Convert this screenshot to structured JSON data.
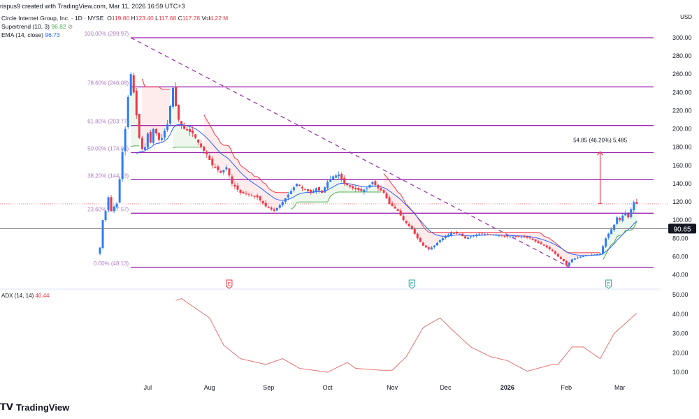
{
  "header": {
    "credit": "rispus9 created with TradingView.com, Mar 11, 2026 16:59 UTC+3",
    "symbol": "Circle Internet Group, Inc. · 1D · NYSE",
    "o_label": "O",
    "o": "119.80",
    "h_label": "H",
    "h": "123.40",
    "l_label": "L",
    "l": "117.68",
    "c_label": "C",
    "c": "117.78",
    "vol_label": "Vol",
    "vol": "4.22 M",
    "supertrend_label": "Supertrend (10, 3)",
    "supertrend_value": "96.82",
    "ema_label": "EMA (14, close)",
    "ema_value": "96.73",
    "currency": "USD"
  },
  "adx": {
    "label": "ADX (14, 14)",
    "value": "40.44"
  },
  "brand": {
    "name": "TradingView"
  },
  "colors": {
    "up": "#2e7cf6",
    "down": "#f23645",
    "fib": "#9c27b0",
    "ema": "#2962ff",
    "supertrend_up": "#4caf50",
    "supertrend_down": "#f23645",
    "adx": "#e57373"
  },
  "chart_data": {
    "type": "candlestick",
    "title": "Circle Internet Group, Inc. 1D NYSE",
    "price_axis": {
      "ticks": [
        "300.00",
        "280.00",
        "260.00",
        "240.00",
        "220.00",
        "200.00",
        "180.00",
        "160.00",
        "140.00",
        "120.00",
        "100.00",
        "80.00",
        "60.00",
        "40.00"
      ],
      "range": [
        36,
        310
      ]
    },
    "time_axis": {
      "ticks": [
        {
          "label": "Jul",
          "day": 17
        },
        {
          "label": "Aug",
          "day": 39
        },
        {
          "label": "Sep",
          "day": 60
        },
        {
          "label": "Oct",
          "day": 81
        },
        {
          "label": "Nov",
          "day": 104
        },
        {
          "label": "Dec",
          "day": 123
        },
        {
          "label": "2026",
          "day": 145,
          "bold": true
        },
        {
          "label": "Feb",
          "day": 166
        },
        {
          "label": "Mar",
          "day": 185
        }
      ]
    },
    "close_keypoints": [
      [
        0,
        70
      ],
      [
        1,
        100
      ],
      [
        2,
        110
      ],
      [
        3,
        125
      ],
      [
        4,
        110
      ],
      [
        5,
        115
      ],
      [
        6,
        118
      ],
      [
        7,
        145
      ],
      [
        8,
        175
      ],
      [
        9,
        200
      ],
      [
        10,
        235
      ],
      [
        11,
        260
      ],
      [
        12,
        240
      ],
      [
        13,
        215
      ],
      [
        14,
        190
      ],
      [
        15,
        178
      ],
      [
        16,
        180
      ],
      [
        17,
        195
      ],
      [
        18,
        185
      ],
      [
        19,
        200
      ],
      [
        20,
        195
      ],
      [
        21,
        188
      ],
      [
        22,
        190
      ],
      [
        23,
        198
      ],
      [
        24,
        205
      ],
      [
        25,
        225
      ],
      [
        26,
        245
      ],
      [
        27,
        225
      ],
      [
        28,
        210
      ],
      [
        30,
        200
      ],
      [
        33,
        195
      ],
      [
        36,
        180
      ],
      [
        38,
        172
      ],
      [
        40,
        160
      ],
      [
        43,
        152
      ],
      [
        45,
        158
      ],
      [
        47,
        140
      ],
      [
        50,
        130
      ],
      [
        53,
        128
      ],
      [
        56,
        125
      ],
      [
        59,
        115
      ],
      [
        62,
        110
      ],
      [
        65,
        120
      ],
      [
        68,
        132
      ],
      [
        70,
        140
      ],
      [
        72,
        135
      ],
      [
        75,
        130
      ],
      [
        77,
        135
      ],
      [
        79,
        130
      ],
      [
        81,
        142
      ],
      [
        83,
        148
      ],
      [
        85,
        150
      ],
      [
        87,
        140
      ],
      [
        90,
        135
      ],
      [
        93,
        132
      ],
      [
        95,
        135
      ],
      [
        97,
        142
      ],
      [
        99,
        135
      ],
      [
        101,
        130
      ],
      [
        103,
        118
      ],
      [
        106,
        110
      ],
      [
        108,
        100
      ],
      [
        111,
        90
      ],
      [
        113,
        80
      ],
      [
        115,
        72
      ],
      [
        117,
        68
      ],
      [
        119,
        72
      ],
      [
        121,
        78
      ],
      [
        123,
        82
      ],
      [
        125,
        86
      ],
      [
        128,
        85
      ],
      [
        130,
        80
      ],
      [
        132,
        82
      ],
      [
        135,
        85
      ],
      [
        140,
        84
      ],
      [
        145,
        82
      ],
      [
        150,
        82
      ],
      [
        153,
        80
      ],
      [
        156,
        75
      ],
      [
        158,
        72
      ],
      [
        161,
        66
      ],
      [
        163,
        60
      ],
      [
        165,
        55
      ],
      [
        166,
        50
      ],
      [
        168,
        57
      ],
      [
        171,
        60
      ],
      [
        175,
        62
      ],
      [
        178,
        63
      ],
      [
        180,
        80
      ],
      [
        181,
        85
      ],
      [
        183,
        95
      ],
      [
        184,
        103
      ],
      [
        185,
        100
      ],
      [
        186,
        105
      ],
      [
        187,
        108
      ],
      [
        188,
        103
      ],
      [
        189,
        112
      ],
      [
        190,
        119.8
      ],
      [
        191,
        117.78
      ]
    ],
    "fibonacci": {
      "levels": [
        {
          "label": "100.00% (299.97)",
          "price": 299.97
        },
        {
          "label": "78.60% (246.08)",
          "price": 246.08
        },
        {
          "label": "61.80% (203.77)",
          "price": 203.77
        },
        {
          "label": "50.00% (174.05)",
          "price": 174.05
        },
        {
          "label": "38.20% (144.33)",
          "price": 144.33
        },
        {
          "label": "23.60% (107.57)",
          "price": 107.57
        },
        {
          "label": "0.00% (48.13)",
          "price": 48.13
        }
      ],
      "start_day": 11,
      "end_day": 166
    },
    "horizontal_line": {
      "price": 90.65,
      "label": "90.65"
    },
    "last_price": 117.78,
    "measure": {
      "from": 118,
      "to": 175,
      "day": 178,
      "label": "54.85 (46.20%) 5,485"
    },
    "earnings_markers": [
      {
        "day": 46,
        "label": "E",
        "color": "#f23645"
      },
      {
        "day": 111,
        "label": "E",
        "color": "#26a69a"
      },
      {
        "day": 181,
        "label": "E",
        "color": "#26a69a"
      }
    ],
    "ema_period": 14,
    "supertrend": {
      "period": 10,
      "multiplier": 3
    },
    "adx_axis": {
      "ticks": [
        "50.00",
        "40.00",
        "30.00",
        "20.00",
        "10.00"
      ]
    },
    "adx_keypoints": [
      [
        27,
        47
      ],
      [
        29,
        48
      ],
      [
        39,
        38
      ],
      [
        44,
        24
      ],
      [
        50,
        17
      ],
      [
        59,
        14
      ],
      [
        65,
        17
      ],
      [
        71,
        12
      ],
      [
        81,
        10
      ],
      [
        88,
        15
      ],
      [
        91,
        12
      ],
      [
        100,
        11
      ],
      [
        104,
        11
      ],
      [
        109,
        18
      ],
      [
        115,
        33
      ],
      [
        121,
        38
      ],
      [
        126,
        31
      ],
      [
        132,
        23
      ],
      [
        139,
        18
      ],
      [
        145,
        16
      ],
      [
        152,
        10.5
      ],
      [
        161,
        14
      ],
      [
        163,
        14
      ],
      [
        168,
        23
      ],
      [
        172,
        23
      ],
      [
        178,
        17
      ],
      [
        183,
        30
      ],
      [
        191,
        40.44
      ]
    ]
  }
}
